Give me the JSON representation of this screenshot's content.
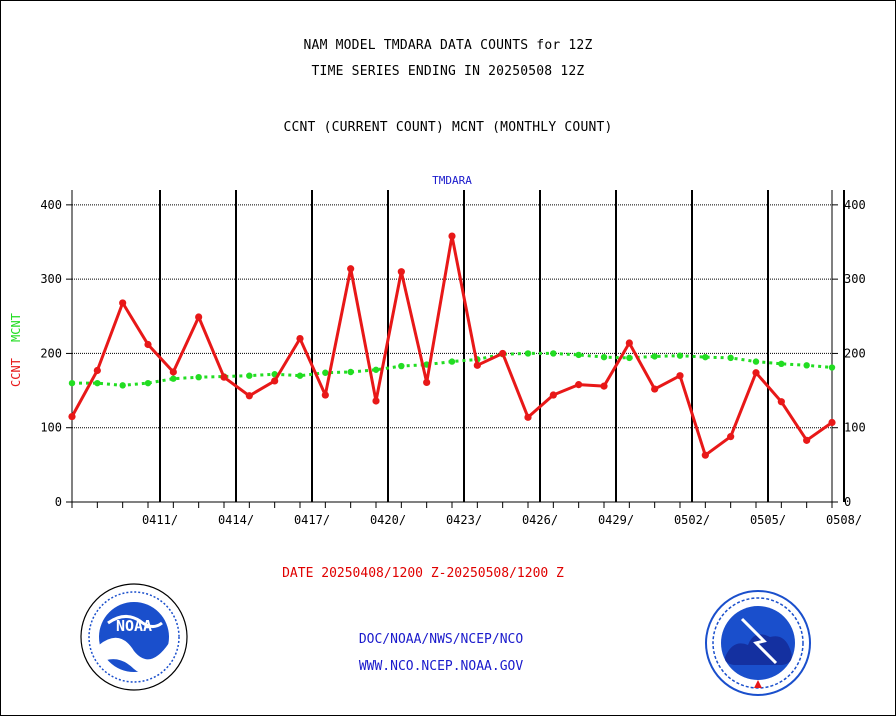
{
  "header": {
    "line1": "NAM MODEL TMDARA DATA COUNTS for 12Z",
    "line2": "TIME SERIES ENDING IN 20250508 12Z",
    "line3": "CCNT (CURRENT COUNT) MCNT (MONTHLY COUNT)"
  },
  "footer": {
    "date_range": "DATE 20250408/1200 Z-20250508/1200 Z",
    "link1": "DOC/NOAA/NWS/NCEP/NCO",
    "link2": "WWW.NCO.NCEP.NOAA.GOV"
  },
  "logos": {
    "left": {
      "icon": "noaa-logo-icon",
      "text": "NOAA"
    },
    "right": {
      "icon": "nws-logo-icon"
    }
  },
  "colors": {
    "ccnt": "#e81818",
    "mcnt": "#22dd22",
    "text_blue": "#1a1acc",
    "axis": "#000000"
  },
  "chart_data": {
    "type": "line",
    "title": "TMDARA",
    "ylabel": [
      "CCNT",
      "MCNT"
    ],
    "ylim": [
      0,
      420
    ],
    "yticks": [
      0,
      100,
      200,
      300,
      400
    ],
    "xticks": [
      "0411/",
      "0414/",
      "0417/",
      "0420/",
      "0423/",
      "0426/",
      "0429/",
      "0502/",
      "0505/",
      "0508/"
    ],
    "grid": true,
    "x": [
      "0408",
      "0409",
      "0410",
      "0411",
      "0412",
      "0413",
      "0414",
      "0415",
      "0416",
      "0417",
      "0418",
      "0419",
      "0420",
      "0421",
      "0422",
      "0423",
      "0424",
      "0425",
      "0426",
      "0427",
      "0428",
      "0429",
      "0430",
      "0501",
      "0502",
      "0503",
      "0504",
      "0505",
      "0506",
      "0507",
      "0508"
    ],
    "series": [
      {
        "name": "CCNT",
        "values": [
          115,
          177,
          268,
          212,
          175,
          249,
          168,
          143,
          163,
          220,
          144,
          314,
          136,
          310,
          161,
          358,
          184,
          200,
          114,
          144,
          158,
          156,
          214,
          152,
          170,
          63,
          88,
          174,
          135,
          83,
          107
        ]
      },
      {
        "name": "MCNT",
        "values": [
          160,
          160,
          157,
          160,
          166,
          168,
          169,
          170,
          172,
          170,
          174,
          175,
          178,
          183,
          185,
          189,
          192,
          199,
          200,
          200,
          198,
          195,
          194,
          196,
          197,
          195,
          194,
          189,
          186,
          184,
          181
        ]
      }
    ]
  }
}
